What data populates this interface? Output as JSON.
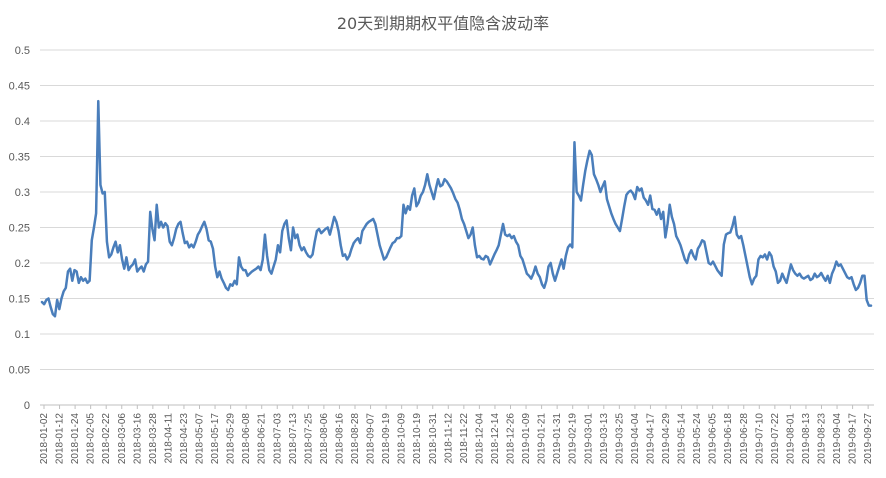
{
  "chart_data": {
    "type": "line",
    "title": "20天到期期权平值隐含波动率",
    "xlabel": "",
    "ylabel": "",
    "ylim": [
      0,
      0.5
    ],
    "yticks": [
      "0",
      "0.05",
      "0.1",
      "0.15",
      "0.2",
      "0.25",
      "0.3",
      "0.35",
      "0.4",
      "0.45",
      "0.5"
    ],
    "ytick_values": [
      0,
      0.05,
      0.1,
      0.15,
      0.2,
      0.25,
      0.3,
      0.35,
      0.4,
      0.45,
      0.5
    ],
    "grid": true,
    "x_tick_labels": [
      "2018-01-02",
      "2018-01-12",
      "2018-01-24",
      "2018-02-05",
      "2018-02-22",
      "2018-03-06",
      "2018-03-16",
      "2018-03-28",
      "2018-04-11",
      "2018-04-23",
      "2018-05-07",
      "2018-05-17",
      "2018-05-29",
      "2018-06-08",
      "2018-06-21",
      "2018-07-03",
      "2018-07-13",
      "2018-07-25",
      "2018-08-06",
      "2018-08-16",
      "2018-08-28",
      "2018-09-07",
      "2018-09-19",
      "2018-10-09",
      "2018-10-19",
      "2018-10-31",
      "2018-11-12",
      "2018-11-22",
      "2018-12-04",
      "2018-12-14",
      "2018-12-26",
      "2019-01-09",
      "2019-01-21",
      "2019-01-31",
      "2019-02-19",
      "2019-03-01",
      "2019-03-13",
      "2019-03-25",
      "2019-04-04",
      "2019-04-17",
      "2019-04-29",
      "2019-05-14",
      "2019-05-24",
      "2019-06-05",
      "2019-06-18",
      "2019-06-28",
      "2019-07-10",
      "2019-07-22",
      "2019-08-01",
      "2019-08-13",
      "2019-08-23",
      "2019-09-04",
      "2019-09-17",
      "2019-09-27"
    ],
    "series": [
      {
        "values": [
          0.145,
          0.142,
          0.148,
          0.15,
          0.138,
          0.128,
          0.125,
          0.148,
          0.135,
          0.15,
          0.16,
          0.165,
          0.188,
          0.192,
          0.175,
          0.19,
          0.188,
          0.172,
          0.18,
          0.175,
          0.178,
          0.172,
          0.175,
          0.232,
          0.25,
          0.27,
          0.428,
          0.31,
          0.298,
          0.3,
          0.23,
          0.208,
          0.212,
          0.222,
          0.23,
          0.215,
          0.225,
          0.205,
          0.192,
          0.208,
          0.19,
          0.195,
          0.198,
          0.205,
          0.188,
          0.192,
          0.195,
          0.188,
          0.198,
          0.202,
          0.272,
          0.248,
          0.232,
          0.282,
          0.25,
          0.258,
          0.25,
          0.256,
          0.252,
          0.23,
          0.225,
          0.235,
          0.248,
          0.255,
          0.258,
          0.242,
          0.228,
          0.23,
          0.222,
          0.226,
          0.222,
          0.23,
          0.24,
          0.245,
          0.252,
          0.258,
          0.248,
          0.232,
          0.23,
          0.22,
          0.195,
          0.18,
          0.188,
          0.178,
          0.172,
          0.165,
          0.162,
          0.17,
          0.168,
          0.175,
          0.17,
          0.208,
          0.195,
          0.19,
          0.19,
          0.182,
          0.185,
          0.188,
          0.19,
          0.192,
          0.195,
          0.19,
          0.205,
          0.24,
          0.21,
          0.19,
          0.185,
          0.195,
          0.205,
          0.225,
          0.215,
          0.245,
          0.255,
          0.26,
          0.235,
          0.218,
          0.25,
          0.235,
          0.24,
          0.225,
          0.218,
          0.222,
          0.215,
          0.21,
          0.208,
          0.212,
          0.23,
          0.245,
          0.248,
          0.242,
          0.245,
          0.248,
          0.25,
          0.24,
          0.252,
          0.265,
          0.258,
          0.245,
          0.225,
          0.21,
          0.212,
          0.205,
          0.21,
          0.22,
          0.228,
          0.232,
          0.235,
          0.228,
          0.245,
          0.25,
          0.255,
          0.258,
          0.26,
          0.262,
          0.255,
          0.24,
          0.225,
          0.215,
          0.205,
          0.208,
          0.215,
          0.222,
          0.228,
          0.23,
          0.235,
          0.235,
          0.238,
          0.282,
          0.27,
          0.28,
          0.275,
          0.295,
          0.305,
          0.28,
          0.285,
          0.295,
          0.3,
          0.31,
          0.325,
          0.31,
          0.3,
          0.29,
          0.305,
          0.318,
          0.308,
          0.31,
          0.318,
          0.315,
          0.31,
          0.305,
          0.298,
          0.29,
          0.285,
          0.275,
          0.262,
          0.255,
          0.245,
          0.235,
          0.24,
          0.25,
          0.225,
          0.208,
          0.21,
          0.206,
          0.205,
          0.21,
          0.208,
          0.198,
          0.205,
          0.212,
          0.218,
          0.225,
          0.24,
          0.255,
          0.24,
          0.238,
          0.24,
          0.235,
          0.238,
          0.23,
          0.225,
          0.21,
          0.205,
          0.195,
          0.185,
          0.182,
          0.178,
          0.185,
          0.195,
          0.185,
          0.18,
          0.17,
          0.165,
          0.175,
          0.195,
          0.2,
          0.185,
          0.175,
          0.185,
          0.195,
          0.205,
          0.192,
          0.21,
          0.222,
          0.226,
          0.222,
          0.37,
          0.3,
          0.295,
          0.288,
          0.31,
          0.33,
          0.345,
          0.358,
          0.352,
          0.325,
          0.318,
          0.31,
          0.3,
          0.308,
          0.315,
          0.29,
          0.28,
          0.27,
          0.262,
          0.255,
          0.25,
          0.245,
          0.262,
          0.28,
          0.296,
          0.3,
          0.302,
          0.298,
          0.29,
          0.307,
          0.302,
          0.305,
          0.292,
          0.288,
          0.282,
          0.295,
          0.276,
          0.275,
          0.268,
          0.276,
          0.262,
          0.272,
          0.236,
          0.255,
          0.282,
          0.265,
          0.255,
          0.238,
          0.232,
          0.225,
          0.215,
          0.205,
          0.2,
          0.212,
          0.218,
          0.21,
          0.205,
          0.22,
          0.225,
          0.232,
          0.23,
          0.215,
          0.2,
          0.198,
          0.202,
          0.196,
          0.19,
          0.186,
          0.182,
          0.226,
          0.24,
          0.242,
          0.243,
          0.252,
          0.265,
          0.24,
          0.235,
          0.238,
          0.225,
          0.21,
          0.195,
          0.18,
          0.17,
          0.178,
          0.182,
          0.205,
          0.21,
          0.208,
          0.212,
          0.205,
          0.215,
          0.21,
          0.195,
          0.188,
          0.172,
          0.175,
          0.185,
          0.178,
          0.172,
          0.185,
          0.198,
          0.19,
          0.185,
          0.182,
          0.185,
          0.18,
          0.178,
          0.18,
          0.182,
          0.176,
          0.178,
          0.185,
          0.18,
          0.182,
          0.186,
          0.18,
          0.175,
          0.182,
          0.172,
          0.185,
          0.192,
          0.202,
          0.196,
          0.198,
          0.192,
          0.186,
          0.18,
          0.178,
          0.18,
          0.17,
          0.162,
          0.165,
          0.172,
          0.182,
          0.182,
          0.148,
          0.14,
          0.14
        ]
      }
    ]
  },
  "colors": {
    "series": "#4a7ebb",
    "grid": "#d9d9d9",
    "text": "#595959",
    "background": "#ffffff"
  }
}
